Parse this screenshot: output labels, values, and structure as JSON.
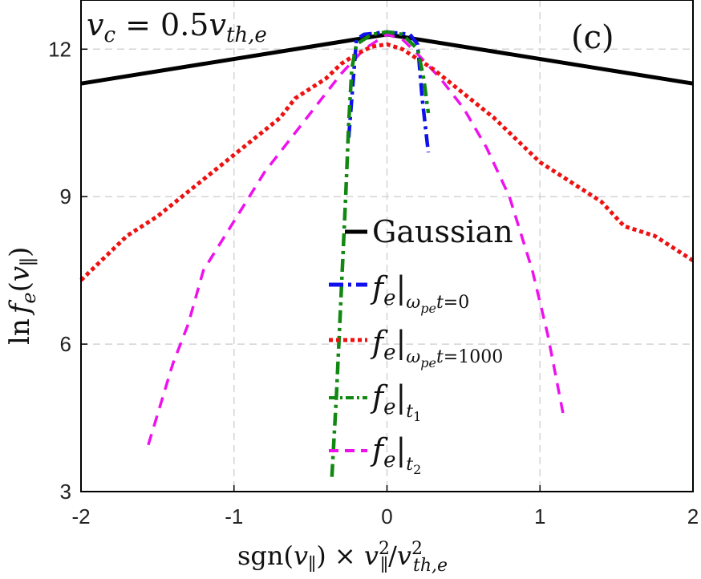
{
  "chart_data": {
    "type": "line",
    "panel_label": "(c)",
    "annotation": "v_c = 0.5 v_th,e",
    "xlabel": "sgn(v_∥) × v_∥^2/v_th,e^2",
    "ylabel": "ln f_e(v_∥)",
    "xlim": [
      -2,
      2
    ],
    "ylim": [
      3,
      13
    ],
    "xticks": [
      -2,
      -1,
      0,
      1,
      2
    ],
    "yticks": [
      3,
      6,
      9,
      12
    ],
    "grid": true,
    "legend_position": "center",
    "series": [
      {
        "name": "Gaussian",
        "color": "#000000",
        "style": "solid",
        "points": [
          [
            -2,
            11.3
          ],
          [
            0,
            12.3
          ],
          [
            2,
            11.3
          ]
        ]
      },
      {
        "name": "f_e|ω_pe t=0",
        "color": "#1010ee",
        "style": "dashdot",
        "points": [
          [
            -0.25,
            10.2
          ],
          [
            -0.23,
            11.0
          ],
          [
            -0.2,
            12.2
          ],
          [
            -0.15,
            12.3
          ],
          [
            0,
            12.35
          ],
          [
            0.15,
            12.3
          ],
          [
            0.2,
            12.1
          ],
          [
            0.23,
            11.0
          ],
          [
            0.27,
            9.9
          ]
        ]
      },
      {
        "name": "f_e|ω_pe t=1000",
        "color": "#ee1111",
        "style": "dotted",
        "points": [
          [
            -2,
            7.3
          ],
          [
            -1.9,
            7.6
          ],
          [
            -1.7,
            8.2
          ],
          [
            -1.5,
            8.6
          ],
          [
            -1.3,
            9.1
          ],
          [
            -1.1,
            9.6
          ],
          [
            -0.9,
            10.1
          ],
          [
            -0.7,
            10.6
          ],
          [
            -0.6,
            11.0
          ],
          [
            -0.5,
            11.2
          ],
          [
            -0.4,
            11.4
          ],
          [
            -0.3,
            11.7
          ],
          [
            -0.2,
            11.9
          ],
          [
            -0.1,
            12.05
          ],
          [
            0,
            12.1
          ],
          [
            0.1,
            12.0
          ],
          [
            0.2,
            11.8
          ],
          [
            0.3,
            11.6
          ],
          [
            0.4,
            11.35
          ],
          [
            0.5,
            11.1
          ],
          [
            0.7,
            10.6
          ],
          [
            0.9,
            10.0
          ],
          [
            1.0,
            9.7
          ],
          [
            1.2,
            9.3
          ],
          [
            1.4,
            8.9
          ],
          [
            1.55,
            8.4
          ],
          [
            1.75,
            8.2
          ],
          [
            1.9,
            7.9
          ],
          [
            2,
            7.7
          ]
        ]
      },
      {
        "name": "f_e|t_1",
        "color": "#118811",
        "style": "dashdot",
        "points": [
          [
            -0.36,
            3.3
          ],
          [
            -0.33,
            5.0
          ],
          [
            -0.3,
            7.0
          ],
          [
            -0.27,
            9.0
          ],
          [
            -0.25,
            10.5
          ],
          [
            -0.23,
            11.6
          ],
          [
            -0.2,
            12.1
          ],
          [
            -0.1,
            12.3
          ],
          [
            0,
            12.35
          ],
          [
            0.1,
            12.3
          ],
          [
            0.2,
            12.0
          ],
          [
            0.24,
            11.4
          ],
          [
            0.27,
            10.7
          ]
        ]
      },
      {
        "name": "f_e|t_2",
        "color": "#ee11ee",
        "style": "dashed",
        "points": [
          [
            -1.56,
            3.95
          ],
          [
            -1.4,
            5.6
          ],
          [
            -1.3,
            6.4
          ],
          [
            -1.2,
            7.5
          ],
          [
            -1.0,
            8.5
          ],
          [
            -0.8,
            9.5
          ],
          [
            -0.6,
            10.3
          ],
          [
            -0.45,
            10.9
          ],
          [
            -0.3,
            11.5
          ],
          [
            -0.15,
            12.0
          ],
          [
            0,
            12.3
          ],
          [
            0.1,
            12.2
          ],
          [
            0.2,
            11.9
          ],
          [
            0.35,
            11.4
          ],
          [
            0.5,
            10.8
          ],
          [
            0.65,
            10.0
          ],
          [
            0.8,
            9.0
          ],
          [
            0.95,
            7.5
          ],
          [
            1.05,
            6.2
          ],
          [
            1.15,
            4.6
          ]
        ]
      }
    ]
  }
}
